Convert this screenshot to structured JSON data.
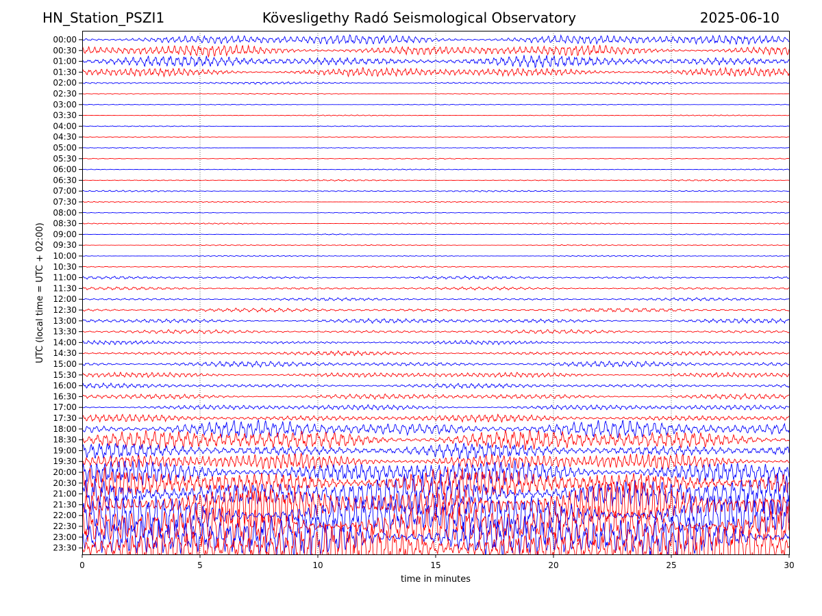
{
  "header": {
    "station": "HN_Station_PSZI1",
    "observatory": "Kövesligethy Radó Seismological Observatory",
    "date": "2025-06-10"
  },
  "chart_data": {
    "type": "line",
    "title": "Kövesligethy Radó Seismological Observatory",
    "xlabel": "time in minutes",
    "ylabel": "UTC (local time = UTC + 02:00)",
    "xlim": [
      0,
      30
    ],
    "x_ticks": [
      "0",
      "5",
      "10",
      "15",
      "20",
      "25",
      "30"
    ],
    "grid": "vertical dotted lines at 5, 10, 15, 20, 25",
    "colors": {
      "blue": "#0000ff",
      "red": "#ff0000"
    },
    "rows": [
      {
        "label": "00:00",
        "color": "blue",
        "amplitude": 0.55
      },
      {
        "label": "00:30",
        "color": "red",
        "amplitude": 0.6
      },
      {
        "label": "01:00",
        "color": "blue",
        "amplitude": 0.6
      },
      {
        "label": "01:30",
        "color": "red",
        "amplitude": 0.5
      },
      {
        "label": "02:00",
        "color": "blue",
        "amplitude": 0.12
      },
      {
        "label": "02:30",
        "color": "red",
        "amplitude": 0.05
      },
      {
        "label": "03:00",
        "color": "blue",
        "amplitude": 0.05
      },
      {
        "label": "03:30",
        "color": "red",
        "amplitude": 0.05
      },
      {
        "label": "04:00",
        "color": "blue",
        "amplitude": 0.05
      },
      {
        "label": "04:30",
        "color": "red",
        "amplitude": 0.04
      },
      {
        "label": "05:00",
        "color": "blue",
        "amplitude": 0.04
      },
      {
        "label": "05:30",
        "color": "red",
        "amplitude": 0.05
      },
      {
        "label": "06:00",
        "color": "blue",
        "amplitude": 0.05
      },
      {
        "label": "06:30",
        "color": "red",
        "amplitude": 0.07
      },
      {
        "label": "07:00",
        "color": "blue",
        "amplitude": 0.08
      },
      {
        "label": "07:30",
        "color": "red",
        "amplitude": 0.06
      },
      {
        "label": "08:00",
        "color": "blue",
        "amplitude": 0.05
      },
      {
        "label": "08:30",
        "color": "red",
        "amplitude": 0.07
      },
      {
        "label": "09:00",
        "color": "blue",
        "amplitude": 0.05
      },
      {
        "label": "09:30",
        "color": "red",
        "amplitude": 0.06
      },
      {
        "label": "10:00",
        "color": "blue",
        "amplitude": 0.06
      },
      {
        "label": "10:30",
        "color": "red",
        "amplitude": 0.07
      },
      {
        "label": "11:00",
        "color": "blue",
        "amplitude": 0.15
      },
      {
        "label": "11:30",
        "color": "red",
        "amplitude": 0.15
      },
      {
        "label": "12:00",
        "color": "blue",
        "amplitude": 0.15
      },
      {
        "label": "12:30",
        "color": "red",
        "amplitude": 0.2
      },
      {
        "label": "13:00",
        "color": "blue",
        "amplitude": 0.25
      },
      {
        "label": "13:30",
        "color": "red",
        "amplitude": 0.2
      },
      {
        "label": "14:00",
        "color": "blue",
        "amplitude": 0.2
      },
      {
        "label": "14:30",
        "color": "red",
        "amplitude": 0.22
      },
      {
        "label": "15:00",
        "color": "blue",
        "amplitude": 0.3
      },
      {
        "label": "15:30",
        "color": "red",
        "amplitude": 0.3
      },
      {
        "label": "16:00",
        "color": "blue",
        "amplitude": 0.25
      },
      {
        "label": "16:30",
        "color": "red",
        "amplitude": 0.3
      },
      {
        "label": "17:00",
        "color": "blue",
        "amplitude": 0.3
      },
      {
        "label": "17:30",
        "color": "red",
        "amplitude": 0.4
      },
      {
        "label": "18:00",
        "color": "blue",
        "amplitude": 0.9
      },
      {
        "label": "18:30",
        "color": "red",
        "amplitude": 1.1
      },
      {
        "label": "19:00",
        "color": "blue",
        "amplitude": 0.8
      },
      {
        "label": "19:30",
        "color": "red",
        "amplitude": 0.9
      },
      {
        "label": "20:00",
        "color": "blue",
        "amplitude": 1.3
      },
      {
        "label": "20:30",
        "color": "red",
        "amplitude": 1.6
      },
      {
        "label": "21:00",
        "color": "blue",
        "amplitude": 2.0
      },
      {
        "label": "21:30",
        "color": "red",
        "amplitude": 2.2
      },
      {
        "label": "22:00",
        "color": "blue",
        "amplitude": 2.4
      },
      {
        "label": "22:30",
        "color": "red",
        "amplitude": 2.4
      },
      {
        "label": "23:00",
        "color": "blue",
        "amplitude": 2.5
      },
      {
        "label": "23:30",
        "color": "red",
        "amplitude": 2.6
      }
    ]
  }
}
